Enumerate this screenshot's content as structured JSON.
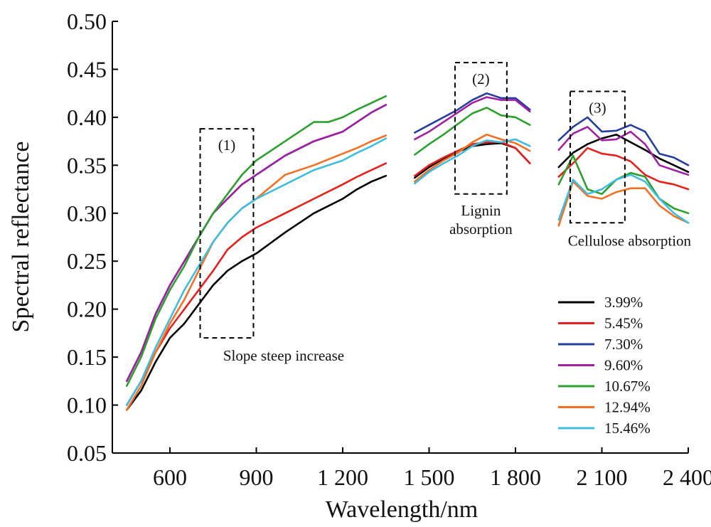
{
  "chart_data": {
    "type": "line",
    "xlabel": "Wavelength/nm",
    "ylabel": "Spectral reflectance",
    "ylim": [
      0.05,
      0.5
    ],
    "xlim": [
      400,
      2400
    ],
    "yticks": [
      "0.05",
      "0.10",
      "0.15",
      "0.20",
      "0.25",
      "0.30",
      "0.35",
      "0.40",
      "0.45",
      "0.50"
    ],
    "xticks": [
      {
        "value": 600,
        "label": "600"
      },
      {
        "value": 900,
        "label": "900"
      },
      {
        "value": 1200,
        "label": "1 200"
      },
      {
        "value": 1500,
        "label": "1 500"
      },
      {
        "value": 1800,
        "label": "1 800"
      },
      {
        "value": 2100,
        "label": "2 100"
      },
      {
        "value": 2400,
        "label": "2 400"
      }
    ],
    "segments": [
      [
        450,
        1350
      ],
      [
        1450,
        1850
      ],
      [
        1950,
        2400
      ]
    ],
    "legend_position": "bottom-right",
    "annotations": [
      {
        "id": "box1",
        "tag": "(1)",
        "label": "Slope steep increase",
        "x0": 705,
        "x1": 890,
        "y0": 0.17,
        "y1": 0.388
      },
      {
        "id": "box2",
        "tag": "(2)",
        "label_lines": [
          "Lignin",
          "absorption"
        ],
        "x0": 1590,
        "x1": 1770,
        "y0": 0.32,
        "y1": 0.457
      },
      {
        "id": "box3",
        "tag": "(3)",
        "label": "Cellulose absorption",
        "x0": 1990,
        "x1": 2180,
        "y0": 0.29,
        "y1": 0.427
      }
    ],
    "series": [
      {
        "name": "3.99%",
        "color": "#000000",
        "points": [
          [
            450,
            0.095
          ],
          [
            500,
            0.115
          ],
          [
            550,
            0.145
          ],
          [
            600,
            0.17
          ],
          [
            650,
            0.185
          ],
          [
            700,
            0.205
          ],
          [
            750,
            0.225
          ],
          [
            800,
            0.24
          ],
          [
            850,
            0.25
          ],
          [
            900,
            0.258
          ],
          [
            1000,
            0.28
          ],
          [
            1100,
            0.3
          ],
          [
            1200,
            0.315
          ],
          [
            1250,
            0.325
          ],
          [
            1300,
            0.333
          ],
          [
            1350,
            0.339
          ],
          [
            1450,
            0.337
          ],
          [
            1500,
            0.348
          ],
          [
            1550,
            0.357
          ],
          [
            1600,
            0.364
          ],
          [
            1650,
            0.37
          ],
          [
            1700,
            0.372
          ],
          [
            1750,
            0.373
          ],
          [
            1800,
            0.368
          ],
          [
            1850,
            0.352
          ],
          [
            1950,
            0.348
          ],
          [
            2000,
            0.363
          ],
          [
            2050,
            0.372
          ],
          [
            2100,
            0.378
          ],
          [
            2150,
            0.382
          ],
          [
            2200,
            0.374
          ],
          [
            2250,
            0.366
          ],
          [
            2300,
            0.357
          ],
          [
            2350,
            0.35
          ],
          [
            2400,
            0.343
          ]
        ]
      },
      {
        "name": "5.45%",
        "color": "#e4211c",
        "points": [
          [
            450,
            0.1
          ],
          [
            500,
            0.125
          ],
          [
            550,
            0.155
          ],
          [
            600,
            0.18
          ],
          [
            650,
            0.2
          ],
          [
            700,
            0.22
          ],
          [
            750,
            0.24
          ],
          [
            800,
            0.262
          ],
          [
            850,
            0.275
          ],
          [
            900,
            0.285
          ],
          [
            1000,
            0.3
          ],
          [
            1100,
            0.315
          ],
          [
            1200,
            0.33
          ],
          [
            1250,
            0.338
          ],
          [
            1300,
            0.345
          ],
          [
            1350,
            0.352
          ],
          [
            1450,
            0.339
          ],
          [
            1500,
            0.35
          ],
          [
            1550,
            0.358
          ],
          [
            1600,
            0.365
          ],
          [
            1650,
            0.372
          ],
          [
            1700,
            0.374
          ],
          [
            1750,
            0.374
          ],
          [
            1800,
            0.368
          ],
          [
            1850,
            0.352
          ],
          [
            1950,
            0.338
          ],
          [
            2000,
            0.352
          ],
          [
            2050,
            0.368
          ],
          [
            2100,
            0.362
          ],
          [
            2150,
            0.36
          ],
          [
            2200,
            0.354
          ],
          [
            2250,
            0.34
          ],
          [
            2300,
            0.333
          ],
          [
            2350,
            0.33
          ],
          [
            2400,
            0.325
          ]
        ]
      },
      {
        "name": "7.30%",
        "color": "#243ea0",
        "points": [
          [
            450,
            0.125
          ],
          [
            500,
            0.155
          ],
          [
            550,
            0.195
          ],
          [
            600,
            0.225
          ],
          [
            650,
            0.25
          ],
          [
            700,
            0.275
          ],
          [
            750,
            0.3
          ],
          [
            800,
            0.315
          ],
          [
            850,
            0.33
          ],
          [
            900,
            0.34
          ],
          [
            1000,
            0.36
          ],
          [
            1100,
            0.375
          ],
          [
            1200,
            0.385
          ],
          [
            1250,
            0.395
          ],
          [
            1300,
            0.405
          ],
          [
            1350,
            0.413
          ],
          [
            1450,
            0.384
          ],
          [
            1500,
            0.392
          ],
          [
            1550,
            0.4
          ],
          [
            1600,
            0.408
          ],
          [
            1650,
            0.418
          ],
          [
            1700,
            0.425
          ],
          [
            1750,
            0.42
          ],
          [
            1800,
            0.42
          ],
          [
            1850,
            0.408
          ],
          [
            1950,
            0.376
          ],
          [
            2000,
            0.39
          ],
          [
            2050,
            0.4
          ],
          [
            2100,
            0.385
          ],
          [
            2150,
            0.386
          ],
          [
            2200,
            0.392
          ],
          [
            2250,
            0.385
          ],
          [
            2300,
            0.362
          ],
          [
            2350,
            0.358
          ],
          [
            2400,
            0.35
          ]
        ]
      },
      {
        "name": "9.60%",
        "color": "#a020a0",
        "points": [
          [
            450,
            0.125
          ],
          [
            500,
            0.155
          ],
          [
            550,
            0.195
          ],
          [
            600,
            0.225
          ],
          [
            650,
            0.25
          ],
          [
            700,
            0.275
          ],
          [
            750,
            0.3
          ],
          [
            800,
            0.315
          ],
          [
            850,
            0.33
          ],
          [
            900,
            0.34
          ],
          [
            1000,
            0.36
          ],
          [
            1100,
            0.375
          ],
          [
            1200,
            0.385
          ],
          [
            1250,
            0.395
          ],
          [
            1300,
            0.405
          ],
          [
            1350,
            0.413
          ],
          [
            1450,
            0.377
          ],
          [
            1500,
            0.385
          ],
          [
            1550,
            0.395
          ],
          [
            1600,
            0.405
          ],
          [
            1650,
            0.415
          ],
          [
            1700,
            0.421
          ],
          [
            1750,
            0.418
          ],
          [
            1800,
            0.418
          ],
          [
            1850,
            0.406
          ],
          [
            1950,
            0.366
          ],
          [
            2000,
            0.383
          ],
          [
            2050,
            0.39
          ],
          [
            2100,
            0.376
          ],
          [
            2150,
            0.377
          ],
          [
            2200,
            0.385
          ],
          [
            2250,
            0.372
          ],
          [
            2300,
            0.35
          ],
          [
            2350,
            0.345
          ],
          [
            2400,
            0.34
          ]
        ]
      },
      {
        "name": "10.67%",
        "color": "#2ca02c",
        "points": [
          [
            450,
            0.12
          ],
          [
            500,
            0.15
          ],
          [
            550,
            0.19
          ],
          [
            600,
            0.22
          ],
          [
            650,
            0.245
          ],
          [
            700,
            0.275
          ],
          [
            750,
            0.3
          ],
          [
            800,
            0.32
          ],
          [
            850,
            0.34
          ],
          [
            900,
            0.355
          ],
          [
            1000,
            0.375
          ],
          [
            1100,
            0.395
          ],
          [
            1150,
            0.395
          ],
          [
            1200,
            0.4
          ],
          [
            1250,
            0.408
          ],
          [
            1300,
            0.415
          ],
          [
            1350,
            0.422
          ],
          [
            1450,
            0.361
          ],
          [
            1500,
            0.372
          ],
          [
            1550,
            0.382
          ],
          [
            1600,
            0.393
          ],
          [
            1650,
            0.404
          ],
          [
            1700,
            0.41
          ],
          [
            1750,
            0.402
          ],
          [
            1800,
            0.4
          ],
          [
            1850,
            0.392
          ],
          [
            1950,
            0.33
          ],
          [
            2000,
            0.36
          ],
          [
            2050,
            0.325
          ],
          [
            2100,
            0.32
          ],
          [
            2150,
            0.335
          ],
          [
            2200,
            0.342
          ],
          [
            2250,
            0.338
          ],
          [
            2300,
            0.315
          ],
          [
            2350,
            0.305
          ],
          [
            2400,
            0.3
          ]
        ]
      },
      {
        "name": "12.94%",
        "color": "#f37022",
        "points": [
          [
            450,
            0.095
          ],
          [
            500,
            0.12
          ],
          [
            550,
            0.155
          ],
          [
            600,
            0.185
          ],
          [
            650,
            0.21
          ],
          [
            700,
            0.24
          ],
          [
            750,
            0.27
          ],
          [
            800,
            0.29
          ],
          [
            850,
            0.305
          ],
          [
            900,
            0.315
          ],
          [
            1000,
            0.34
          ],
          [
            1100,
            0.35
          ],
          [
            1200,
            0.362
          ],
          [
            1250,
            0.368
          ],
          [
            1300,
            0.375
          ],
          [
            1350,
            0.381
          ],
          [
            1450,
            0.333
          ],
          [
            1500,
            0.345
          ],
          [
            1550,
            0.355
          ],
          [
            1600,
            0.363
          ],
          [
            1650,
            0.374
          ],
          [
            1700,
            0.382
          ],
          [
            1750,
            0.377
          ],
          [
            1800,
            0.373
          ],
          [
            1850,
            0.365
          ],
          [
            1950,
            0.287
          ],
          [
            2000,
            0.333
          ],
          [
            2050,
            0.318
          ],
          [
            2100,
            0.315
          ],
          [
            2150,
            0.322
          ],
          [
            2200,
            0.326
          ],
          [
            2250,
            0.326
          ],
          [
            2300,
            0.308
          ],
          [
            2350,
            0.297
          ],
          [
            2400,
            0.29
          ]
        ]
      },
      {
        "name": "15.46%",
        "color": "#3ebde0",
        "points": [
          [
            450,
            0.1
          ],
          [
            500,
            0.125
          ],
          [
            550,
            0.16
          ],
          [
            600,
            0.19
          ],
          [
            650,
            0.22
          ],
          [
            700,
            0.245
          ],
          [
            750,
            0.27
          ],
          [
            800,
            0.29
          ],
          [
            850,
            0.305
          ],
          [
            900,
            0.315
          ],
          [
            1000,
            0.33
          ],
          [
            1100,
            0.345
          ],
          [
            1200,
            0.355
          ],
          [
            1250,
            0.363
          ],
          [
            1300,
            0.37
          ],
          [
            1350,
            0.378
          ],
          [
            1450,
            0.331
          ],
          [
            1500,
            0.343
          ],
          [
            1550,
            0.352
          ],
          [
            1600,
            0.36
          ],
          [
            1650,
            0.37
          ],
          [
            1700,
            0.376
          ],
          [
            1750,
            0.374
          ],
          [
            1800,
            0.377
          ],
          [
            1850,
            0.37
          ],
          [
            1950,
            0.293
          ],
          [
            2000,
            0.335
          ],
          [
            2050,
            0.32
          ],
          [
            2100,
            0.325
          ],
          [
            2150,
            0.335
          ],
          [
            2200,
            0.34
          ],
          [
            2250,
            0.333
          ],
          [
            2300,
            0.315
          ],
          [
            2350,
            0.3
          ],
          [
            2400,
            0.29
          ]
        ]
      }
    ]
  }
}
